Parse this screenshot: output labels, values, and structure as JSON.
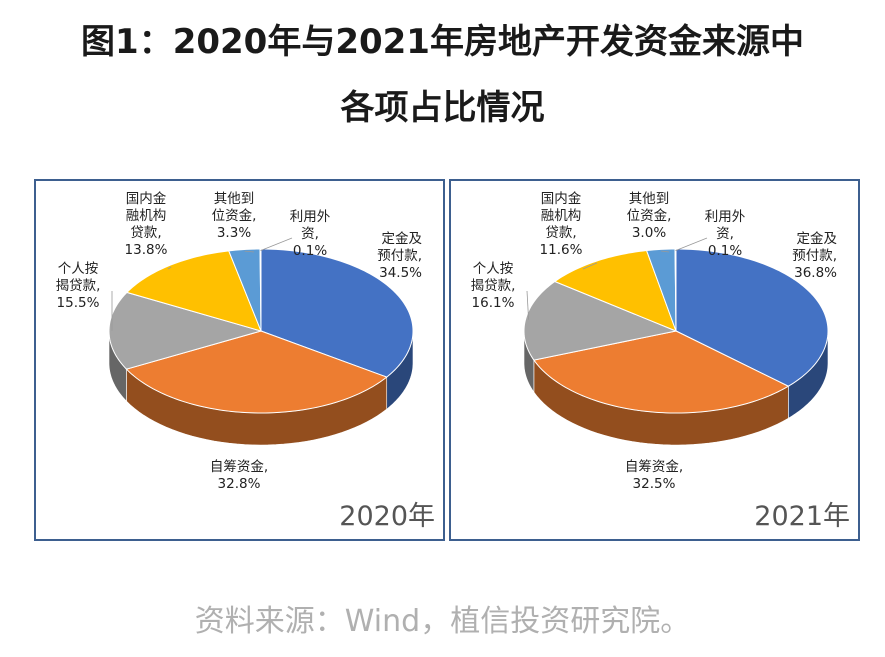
{
  "title": {
    "line1": "图1：2020年与2021年房地产开发资金来源中",
    "line2": "各项占比情况"
  },
  "source": "资料来源：Wind，植信投资研究院。",
  "chart_data": [
    {
      "type": "pie",
      "title": "2020年",
      "slices": [
        {
          "name_lines": [
            "定金及",
            "预付款,"
          ],
          "value_text": "34.5%",
          "value": 34.5,
          "color": "#4472c4"
        },
        {
          "name_lines": [
            "自筹资金,"
          ],
          "value_text": "32.8%",
          "value": 32.8,
          "color": "#ed7d31"
        },
        {
          "name_lines": [
            "个人按",
            "揭贷款,"
          ],
          "value_text": "15.5%",
          "value": 15.5,
          "color": "#a5a5a5"
        },
        {
          "name_lines": [
            "国内金",
            "融机构",
            "贷款,"
          ],
          "value_text": "13.8%",
          "value": 13.8,
          "color": "#ffc000"
        },
        {
          "name_lines": [
            "其他到",
            "位资金,"
          ],
          "value_text": "3.3%",
          "value": 3.3,
          "color": "#5b9bd5"
        },
        {
          "name_lines": [
            "利用外",
            "资,"
          ],
          "value_text": "0.1%",
          "value": 0.1,
          "color": "#70ad47"
        }
      ]
    },
    {
      "type": "pie",
      "title": "2021年",
      "slices": [
        {
          "name_lines": [
            "定金及",
            "预付款,"
          ],
          "value_text": "36.8%",
          "value": 36.8,
          "color": "#4472c4"
        },
        {
          "name_lines": [
            "自筹资金,"
          ],
          "value_text": "32.5%",
          "value": 32.5,
          "color": "#ed7d31"
        },
        {
          "name_lines": [
            "个人按",
            "揭贷款,"
          ],
          "value_text": "16.1%",
          "value": 16.1,
          "color": "#a5a5a5"
        },
        {
          "name_lines": [
            "国内金",
            "融机构",
            "贷款,"
          ],
          "value_text": "11.6%",
          "value": 11.6,
          "color": "#ffc000"
        },
        {
          "name_lines": [
            "其他到",
            "位资金,"
          ],
          "value_text": "3.0%",
          "value": 3.0,
          "color": "#5b9bd5"
        },
        {
          "name_lines": [
            "利用外",
            "资,"
          ],
          "value_text": "0.1%",
          "value": 0.1,
          "color": "#70ad47"
        }
      ]
    }
  ]
}
